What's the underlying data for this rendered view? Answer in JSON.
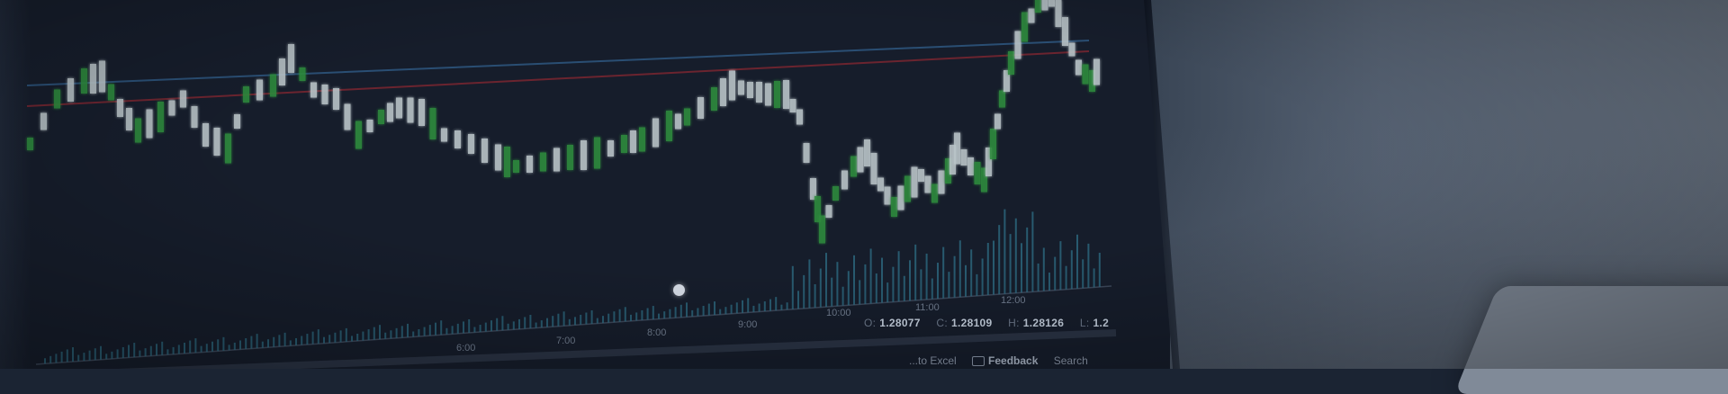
{
  "time_axis": {
    "upper": [
      "10:00",
      "11:00",
      "12:00"
    ],
    "lower": [
      "6:00",
      "7:00",
      "8:00",
      "9:00"
    ]
  },
  "price_readout": {
    "o_label": "O:",
    "o_value": "1.28077",
    "c_label": "C:",
    "c_value": "1.28109",
    "h_label": "H:",
    "h_value": "1.28126",
    "l_label": "L:",
    "l_value": "1.2"
  },
  "footer": {
    "export_text": "...to Excel",
    "feedback_label": "Feedback",
    "search_label": "Search"
  },
  "colors": {
    "candle_up": "#2e8b3e",
    "candle_down": "#b9c4c8",
    "line_blue": "#2f5b86",
    "line_red": "#7a2630",
    "volume": "#2f6f86"
  }
}
